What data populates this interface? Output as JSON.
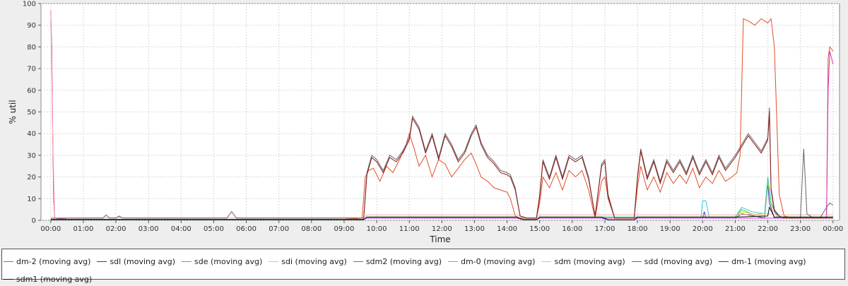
{
  "chart_data": {
    "type": "line",
    "xlabel": "Time",
    "ylabel": "% util",
    "ylim": [
      0,
      100
    ],
    "yticks": [
      0,
      10,
      20,
      30,
      40,
      50,
      60,
      70,
      80,
      90,
      100
    ],
    "xlim": [
      -0.3,
      24.2
    ],
    "xticks": [
      "00:00",
      "01:00",
      "02:00",
      "03:00",
      "04:00",
      "05:00",
      "06:00",
      "07:00",
      "08:00",
      "09:00",
      "10:00",
      "11:00",
      "12:00",
      "13:00",
      "14:00",
      "15:00",
      "16:00",
      "17:00",
      "18:00",
      "19:00",
      "20:00",
      "21:00",
      "22:00",
      "23:00",
      "00:00"
    ],
    "grid": true,
    "legend_position": "bottom",
    "series": [
      {
        "name": "dm-2 (moving avg)",
        "color": "#e0502a",
        "x": [
          0.0,
          0.03,
          0.06,
          0.09,
          0.12,
          0.5,
          1.0,
          2.0,
          3.0,
          4.0,
          5.0,
          6.0,
          7.0,
          8.0,
          9.0,
          9.55,
          9.65,
          9.75,
          9.9,
          10.1,
          10.3,
          10.5,
          10.7,
          10.9,
          11.0,
          11.15,
          11.3,
          11.5,
          11.7,
          11.9,
          12.1,
          12.3,
          12.5,
          12.7,
          12.9,
          13.05,
          13.2,
          13.4,
          13.6,
          13.8,
          14.0,
          14.1,
          14.25,
          14.4,
          14.6,
          14.8,
          14.9,
          15.0,
          15.1,
          15.3,
          15.5,
          15.7,
          15.9,
          16.1,
          16.3,
          16.5,
          16.7,
          16.9,
          17.0,
          17.1,
          17.3,
          17.5,
          17.7,
          17.9,
          18.0,
          18.1,
          18.3,
          18.5,
          18.7,
          18.9,
          19.1,
          19.3,
          19.5,
          19.7,
          19.9,
          20.1,
          20.3,
          20.5,
          20.7,
          20.9,
          21.05,
          21.15,
          21.25,
          21.4,
          21.6,
          21.8,
          22.0,
          22.1,
          22.2,
          22.35,
          22.5,
          22.8,
          23.0,
          23.1,
          23.2,
          23.4,
          23.6,
          23.8,
          23.85,
          23.9,
          23.95,
          24.0
        ],
        "values": [
          97,
          80,
          40,
          10,
          1,
          0.5,
          0.5,
          0.5,
          0.5,
          0.5,
          0.5,
          0.5,
          0.5,
          0.5,
          0.5,
          1,
          20,
          23,
          24,
          18,
          25,
          22,
          28,
          35,
          40,
          33,
          25,
          30,
          20,
          28,
          26,
          20,
          24,
          28,
          31,
          26,
          20,
          18,
          15,
          14,
          13,
          10,
          2,
          1,
          1,
          1,
          1,
          8,
          20,
          15,
          22,
          14,
          23,
          20,
          23,
          14,
          1,
          18,
          20,
          10,
          1,
          1,
          1,
          1,
          15,
          25,
          14,
          20,
          13,
          22,
          17,
          21,
          17,
          24,
          15,
          20,
          17,
          23,
          18,
          20,
          22,
          30,
          93,
          92,
          90,
          93,
          91,
          93,
          80,
          12,
          2,
          1,
          1,
          1,
          1,
          1,
          1,
          1,
          75,
          80,
          79,
          78
        ]
      },
      {
        "name": "sdl (moving avg)",
        "color": "#3333cc",
        "x": [
          0,
          9.6,
          9.7,
          14.3,
          14.5,
          14.9,
          15.0,
          16.9,
          17.1,
          17.3,
          17.5,
          17.9,
          18.0,
          20.0,
          20.05,
          20.1,
          20.2,
          21.0,
          21.2,
          21.6,
          21.9,
          22.0,
          22.05,
          22.2,
          22.4,
          24.0
        ],
        "values": [
          0.5,
          0.5,
          1,
          1,
          0.3,
          0.3,
          1,
          1,
          0.3,
          0.3,
          0.3,
          0.3,
          1,
          1,
          4,
          1,
          1,
          1,
          3,
          2,
          1,
          17,
          8,
          1,
          1,
          1
        ]
      },
      {
        "name": "sde (moving avg)",
        "color": "#33cc33",
        "x": [
          0,
          9.6,
          9.7,
          14.3,
          14.5,
          14.9,
          15.0,
          20.0,
          21.0,
          21.2,
          21.5,
          21.9,
          22.0,
          22.1,
          22.3,
          24.0
        ],
        "values": [
          0.3,
          0.3,
          1.5,
          1.5,
          0.3,
          0.3,
          1.5,
          1.5,
          1.5,
          5,
          3,
          2,
          20,
          8,
          1.5,
          1.5
        ]
      },
      {
        "name": "sdi (moving avg)",
        "color": "#dddd00",
        "x": [
          0,
          9.6,
          9.7,
          14.3,
          14.5,
          14.9,
          15.0,
          20.0,
          21.0,
          21.2,
          21.5,
          21.9,
          22.0,
          22.1,
          22.3,
          24.0
        ],
        "values": [
          0.3,
          0.3,
          1.5,
          1.5,
          0.3,
          0.3,
          1.5,
          1.5,
          1.5,
          4,
          3,
          2,
          18,
          7,
          1.5,
          1.5
        ]
      },
      {
        "name": "sdm2 (moving avg)",
        "color": "#cc33cc",
        "x": [
          0.0,
          0.03,
          0.06,
          0.09,
          0.12,
          0.5,
          9.6,
          9.7,
          14.3,
          14.5,
          14.9,
          15.0,
          23.0,
          23.8,
          23.85,
          23.9,
          23.95,
          24.0
        ],
        "values": [
          96,
          78,
          40,
          10,
          1,
          0.5,
          0.5,
          1,
          1,
          0.5,
          0.5,
          1,
          1,
          1,
          60,
          78,
          75,
          72
        ]
      },
      {
        "name": "dm-0 (moving avg)",
        "color": "#33cccc",
        "x": [
          0,
          9.6,
          9.7,
          14.3,
          14.5,
          14.9,
          15.0,
          19.95,
          20.0,
          20.1,
          20.2,
          21.0,
          21.2,
          21.5,
          21.9,
          22.0,
          22.1,
          22.3,
          24.0
        ],
        "values": [
          0.3,
          0.3,
          1.5,
          1.5,
          0.3,
          0.3,
          1.5,
          1.5,
          9,
          9,
          1.5,
          1.5,
          6,
          4,
          3,
          20,
          8,
          1.5,
          1.5
        ]
      },
      {
        "name": "sdm (moving avg)",
        "color": "#ffaaaa",
        "x": [
          0,
          0.06,
          0.12,
          1.0,
          9.6,
          9.7,
          14.3,
          14.5,
          14.9,
          15.0,
          20.0,
          21.0,
          22.0,
          22.3,
          23.0,
          24.0
        ],
        "values": [
          97,
          40,
          1,
          1.2,
          1.2,
          2.5,
          2.5,
          1.2,
          1.2,
          2.5,
          2.5,
          2.5,
          3,
          2.5,
          2.5,
          2.5
        ]
      },
      {
        "name": "sdd (moving avg)",
        "color": "#666666",
        "x": [
          0,
          1.6,
          1.7,
          1.8,
          2.0,
          2.1,
          2.2,
          5.4,
          5.55,
          5.7,
          7.0,
          9.6,
          9.7,
          9.85,
          10.0,
          10.2,
          10.4,
          10.6,
          10.8,
          11.0,
          11.1,
          11.3,
          11.5,
          11.7,
          11.9,
          12.1,
          12.3,
          12.5,
          12.7,
          12.9,
          13.05,
          13.2,
          13.4,
          13.6,
          13.8,
          14.0,
          14.1,
          14.25,
          14.4,
          14.6,
          14.8,
          14.9,
          15.0,
          15.1,
          15.3,
          15.5,
          15.7,
          15.9,
          16.1,
          16.3,
          16.5,
          16.7,
          16.9,
          17.0,
          17.1,
          17.3,
          17.5,
          17.7,
          17.9,
          18.0,
          18.1,
          18.3,
          18.5,
          18.7,
          18.9,
          19.1,
          19.3,
          19.5,
          19.7,
          19.9,
          20.1,
          20.3,
          20.5,
          20.7,
          20.9,
          21.0,
          21.2,
          21.4,
          21.6,
          21.8,
          22.0,
          22.05,
          22.1,
          22.2,
          22.35,
          22.5,
          22.8,
          23.0,
          23.1,
          23.2,
          23.4,
          23.6,
          23.8,
          23.9,
          24.0
        ],
        "values": [
          1,
          1,
          2.5,
          1,
          1,
          2,
          1,
          1,
          4,
          1,
          1,
          1,
          22,
          30,
          28,
          23,
          30,
          28,
          32,
          38,
          48,
          43,
          32,
          40,
          29,
          40,
          35,
          28,
          32,
          40,
          44,
          36,
          30,
          27,
          23,
          22,
          21,
          15,
          2,
          1,
          1,
          1,
          12,
          28,
          20,
          30,
          20,
          30,
          28,
          30,
          20,
          2,
          26,
          28,
          12,
          1,
          1,
          1,
          1,
          20,
          33,
          20,
          28,
          18,
          28,
          23,
          28,
          22,
          30,
          22,
          28,
          22,
          30,
          24,
          28,
          30,
          35,
          40,
          36,
          32,
          38,
          52,
          15,
          5,
          2,
          1,
          1,
          1,
          33,
          3,
          1,
          1,
          6,
          8,
          7
        ]
      },
      {
        "name": "dm-1 (moving avg)",
        "color": "#8b1a1a",
        "x": [
          0,
          9.6,
          9.7,
          9.85,
          10.0,
          10.2,
          10.4,
          10.6,
          10.8,
          11.0,
          11.1,
          11.3,
          11.5,
          11.7,
          11.9,
          12.1,
          12.3,
          12.5,
          12.7,
          12.9,
          13.05,
          13.2,
          13.4,
          13.6,
          13.8,
          14.0,
          14.1,
          14.25,
          14.4,
          14.6,
          14.8,
          14.9,
          15.0,
          15.1,
          15.3,
          15.5,
          15.7,
          15.9,
          16.1,
          16.3,
          16.5,
          16.7,
          16.9,
          17.0,
          17.1,
          17.3,
          17.5,
          17.7,
          17.9,
          18.0,
          18.1,
          18.3,
          18.5,
          18.7,
          18.9,
          19.1,
          19.3,
          19.5,
          19.7,
          19.9,
          20.1,
          20.3,
          20.5,
          20.7,
          20.9,
          21.0,
          21.2,
          21.4,
          21.6,
          21.8,
          22.0,
          22.05,
          22.1,
          22.2,
          22.35,
          22.5,
          24.0
        ],
        "values": [
          0.5,
          0.5,
          21,
          29,
          27,
          22,
          29,
          27,
          31,
          37,
          47,
          42,
          31,
          39,
          28,
          39,
          34,
          27,
          31,
          39,
          43,
          35,
          29,
          26,
          22,
          21,
          20,
          14,
          2,
          1,
          1,
          1,
          11,
          27,
          19,
          29,
          19,
          29,
          27,
          29,
          19,
          2,
          25,
          27,
          11,
          1,
          1,
          1,
          1,
          19,
          32,
          19,
          27,
          17,
          27,
          22,
          27,
          21,
          29,
          21,
          27,
          21,
          29,
          23,
          27,
          29,
          34,
          39,
          35,
          31,
          37,
          50,
          14,
          4,
          2,
          1,
          1
        ]
      },
      {
        "name": "sdm1 (moving avg)",
        "color": "#111111",
        "x": [
          0,
          9.6,
          9.7,
          14.3,
          14.5,
          14.9,
          15.0,
          16.9,
          17.1,
          17.9,
          18.0,
          20.0,
          21.0,
          22.0,
          22.05,
          22.2,
          24.0
        ],
        "values": [
          0.3,
          0.3,
          1.5,
          1.5,
          0.3,
          0.3,
          1.5,
          1.5,
          0.3,
          0.3,
          1.5,
          1.5,
          1.5,
          2,
          6,
          1.5,
          1.5
        ]
      }
    ]
  }
}
